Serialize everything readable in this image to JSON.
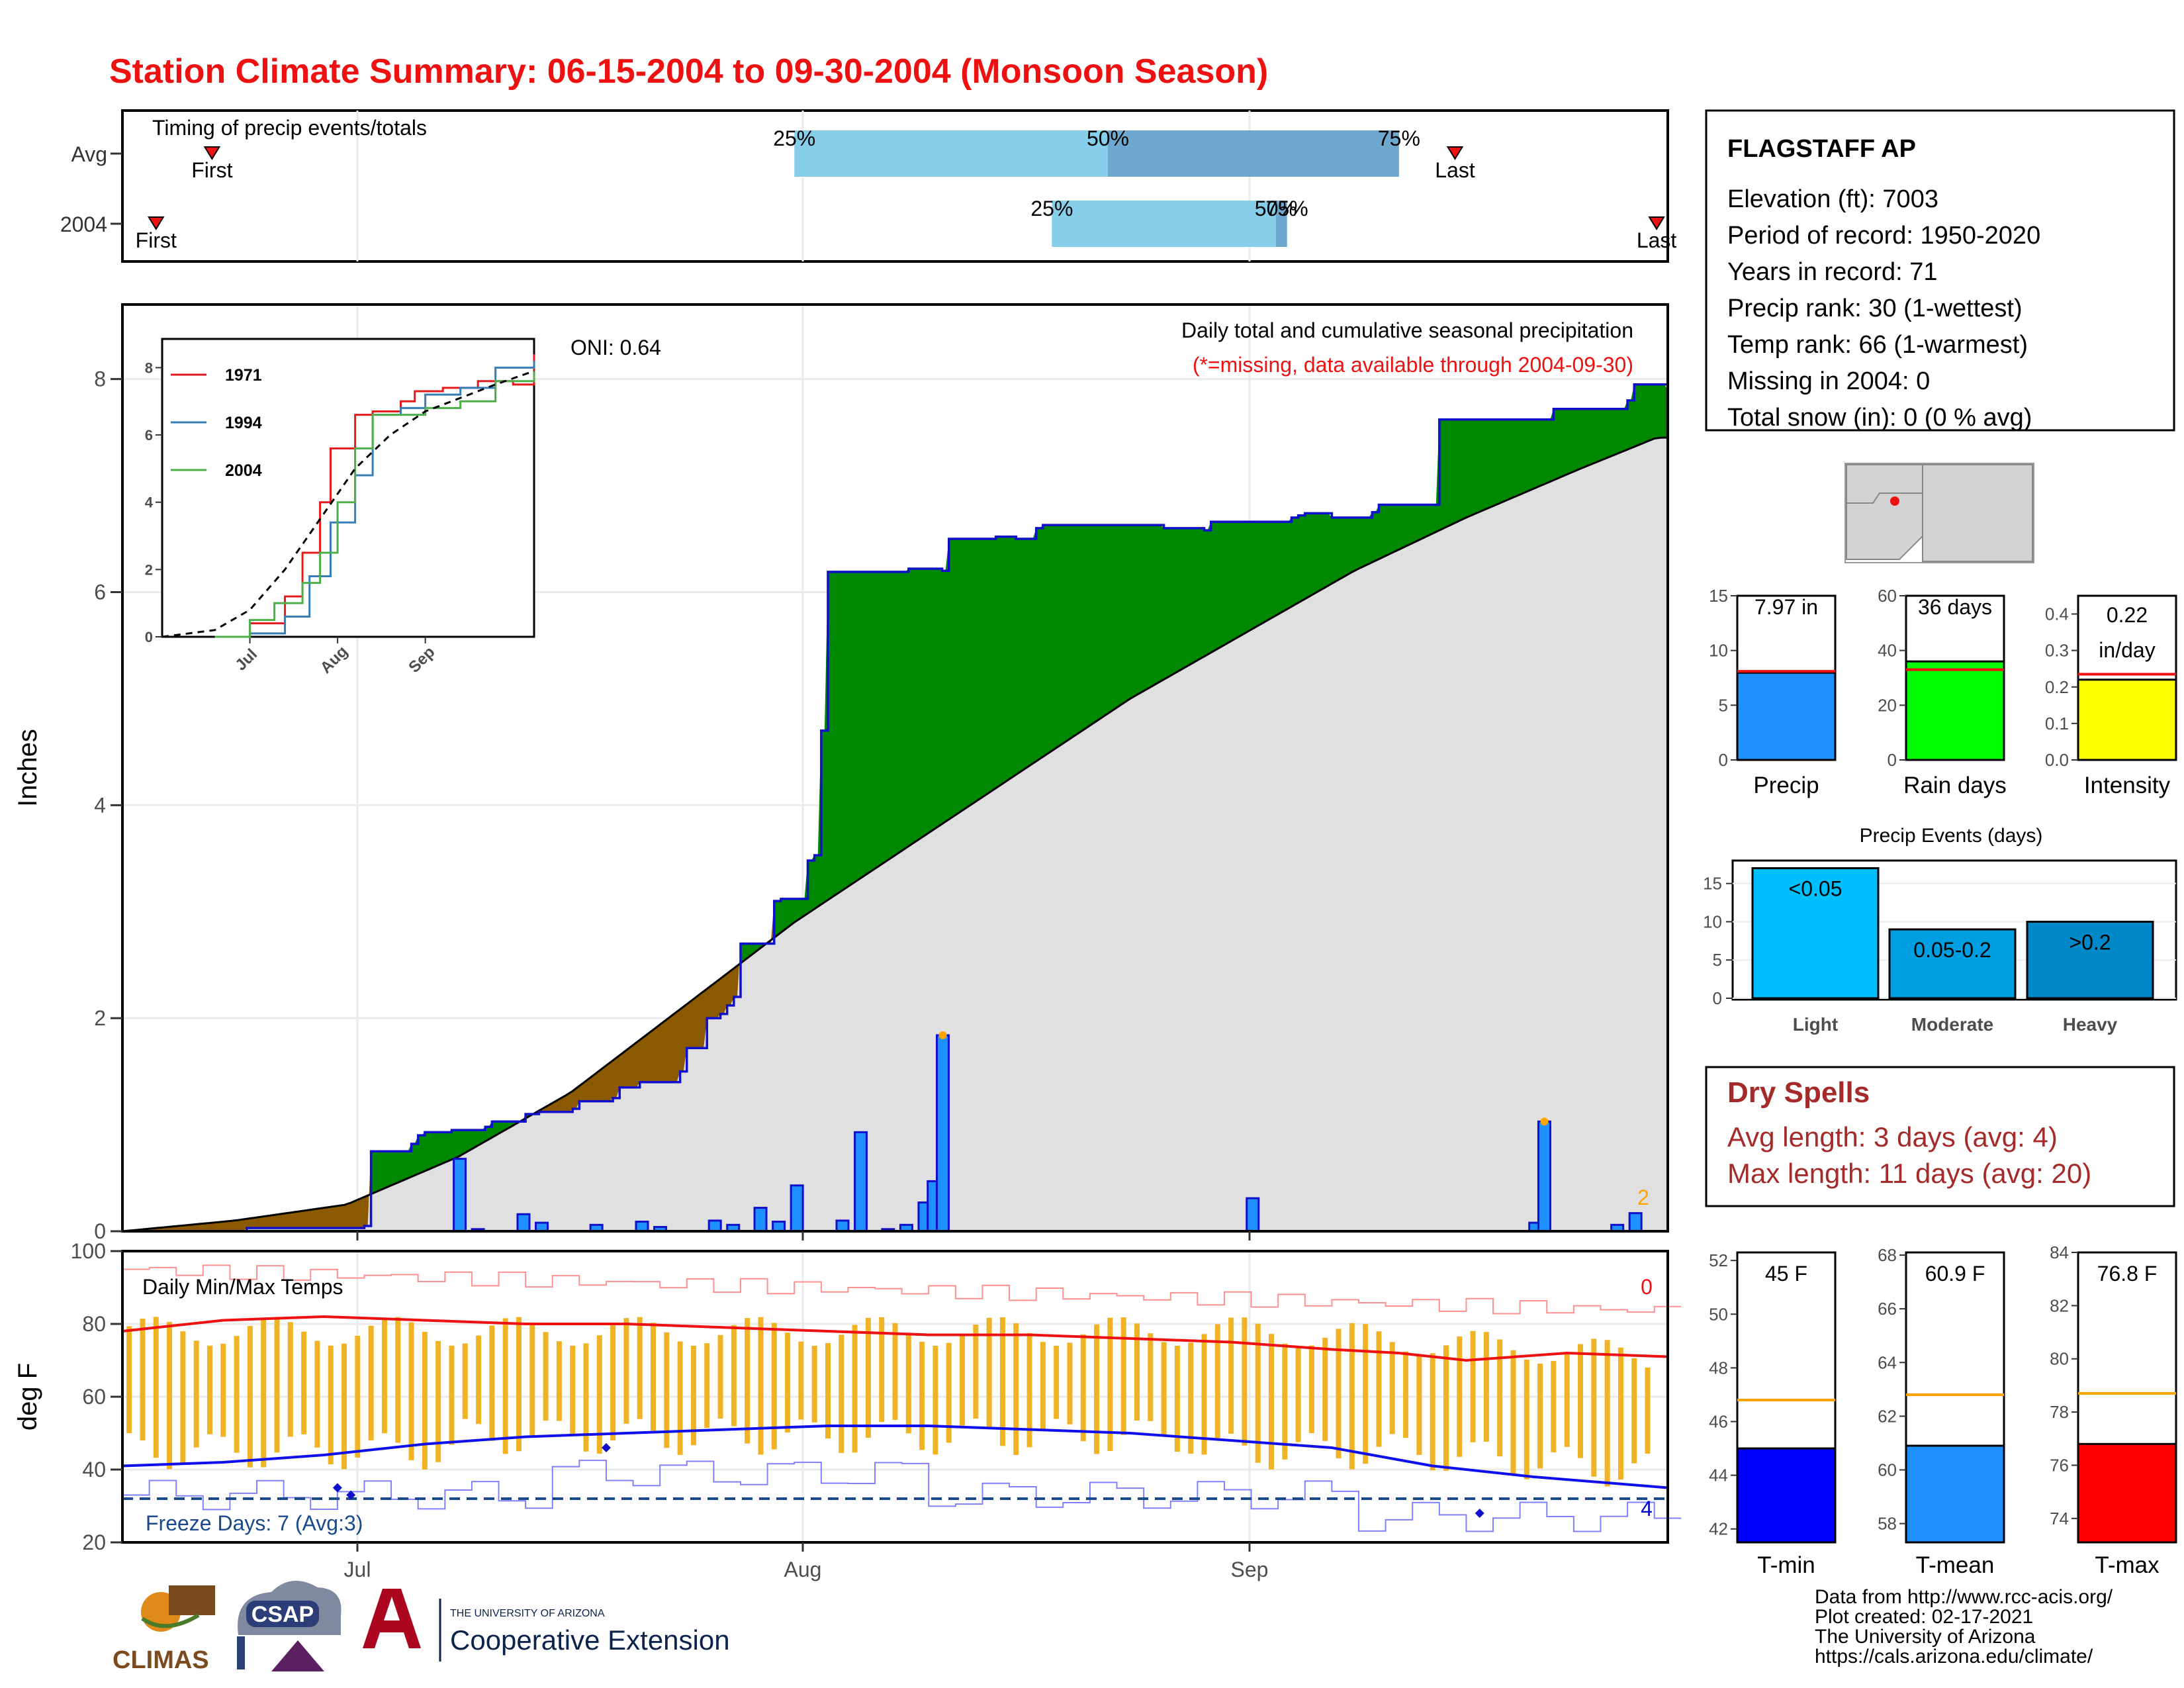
{
  "page": {
    "title": "Station Climate Summary: 06-15-2004 to 09-30-2004 (Monsoon Season)",
    "colors": {
      "title": "#ee1111",
      "avg_line": "#ee1111",
      "dry_spell_text": "#a52a2a"
    }
  },
  "timing_panel": {
    "title": "Timing of precip events/totals",
    "rows": [
      "Avg",
      "2004"
    ],
    "avg": {
      "first_day": 8,
      "last_day": 119,
      "pct25": 60,
      "pct50": 88,
      "pct75": 114,
      "first_label": "First",
      "last_label": "Last",
      "labels": [
        "25%",
        "50%",
        "75%"
      ]
    },
    "y2004": {
      "first_day": 3,
      "last_day": 137,
      "pct25": 83,
      "pct50": 103,
      "pct75": 104,
      "first_label": "First",
      "last_label": "Last",
      "labels": [
        "25%",
        "50%",
        "75%"
      ]
    }
  },
  "precip_panel": {
    "ylabel": "Inches",
    "oni": "ONI: 0.64",
    "title": "Daily total and cumulative seasonal precipitation",
    "note": "(*=missing, data available through 2004-09-30)",
    "count_label": "2",
    "ylim": [
      0,
      8.7
    ],
    "yticks": [
      0,
      2,
      4,
      6,
      8
    ],
    "x_ticks": [
      "Jul",
      "Aug",
      "Sep"
    ]
  },
  "chart_data": [
    {
      "type": "area",
      "name": "cumulative",
      "x_start": "2004-06-15",
      "x_end": "2004-09-30",
      "avg_cumulative": [
        [
          0,
          0
        ],
        [
          10,
          0.1
        ],
        [
          20,
          0.25
        ],
        [
          30,
          0.7
        ],
        [
          40,
          1.3
        ],
        [
          50,
          2.1
        ],
        [
          60,
          2.9
        ],
        [
          70,
          3.6
        ],
        [
          80,
          4.3
        ],
        [
          90,
          5.0
        ],
        [
          100,
          5.6
        ],
        [
          110,
          6.2
        ],
        [
          120,
          6.7
        ],
        [
          130,
          7.15
        ],
        [
          137,
          7.45
        ],
        [
          138,
          7.45
        ]
      ],
      "cumulative_2004": [
        [
          0,
          0
        ],
        [
          18,
          0.0
        ],
        [
          18.5,
          0.03
        ],
        [
          36,
          0.05
        ],
        [
          37,
          0.75
        ],
        [
          43,
          0.82
        ],
        [
          44,
          0.9
        ],
        [
          45,
          0.93
        ],
        [
          49,
          0.95
        ],
        [
          54,
          0.98
        ],
        [
          55,
          1.03
        ],
        [
          60,
          1.1
        ],
        [
          62,
          1.12
        ],
        [
          67,
          1.15
        ],
        [
          68,
          1.22
        ],
        [
          73,
          1.25
        ],
        [
          74,
          1.35
        ],
        [
          77,
          1.4
        ],
        [
          83,
          1.5
        ],
        [
          84,
          1.72
        ],
        [
          87,
          2.0
        ],
        [
          89,
          2.04
        ],
        [
          90,
          2.12
        ],
        [
          91,
          2.2
        ],
        [
          92,
          2.7
        ],
        [
          97,
          3.1
        ],
        [
          98,
          3.12
        ],
        [
          102,
          3.48
        ],
        [
          103,
          3.53
        ],
        [
          104,
          4.7
        ],
        [
          105,
          6.19
        ],
        [
          117,
          6.22
        ],
        [
          122,
          6.2
        ],
        [
          123,
          6.5
        ],
        [
          130,
          6.52
        ],
        [
          133,
          6.5
        ],
        [
          136,
          6.6
        ],
        [
          137,
          6.63
        ],
        [
          150,
          6.63
        ],
        [
          155,
          6.6
        ],
        [
          161,
          6.58
        ],
        [
          162,
          6.66
        ],
        [
          171,
          6.66
        ],
        [
          174,
          6.7
        ],
        [
          175,
          6.72
        ],
        [
          176,
          6.74
        ],
        [
          180,
          6.7
        ],
        [
          186,
          6.75
        ],
        [
          187,
          6.82
        ],
        [
          195,
          6.82
        ],
        [
          196,
          7.62
        ],
        [
          211,
          7.62
        ],
        [
          213,
          7.72
        ],
        [
          222,
          7.72
        ],
        [
          224,
          7.8
        ],
        [
          225,
          7.95
        ],
        [
          228,
          7.95
        ],
        [
          230,
          7.9
        ]
      ],
      "daily_precip": [
        [
          37,
          0.68
        ],
        [
          39,
          0.02
        ],
        [
          44,
          0.16
        ],
        [
          46,
          0.08
        ],
        [
          52,
          0.06
        ],
        [
          57,
          0.09
        ],
        [
          59,
          0.04
        ],
        [
          65,
          0.1
        ],
        [
          67,
          0.06
        ],
        [
          70,
          0.22
        ],
        [
          72,
          0.09
        ],
        [
          74,
          0.43
        ],
        [
          79,
          0.1
        ],
        [
          81,
          0.93
        ],
        [
          84,
          0.02
        ],
        [
          86,
          0.06
        ],
        [
          88,
          0.27
        ],
        [
          89,
          0.47
        ],
        [
          90,
          1.84
        ],
        [
          124,
          0.31
        ],
        [
          155,
          0.08
        ],
        [
          156,
          1.03
        ],
        [
          164,
          0.06
        ],
        [
          166,
          0.17
        ]
      ],
      "ylim": [
        0,
        8.7
      ],
      "ylabel": "Inches"
    },
    {
      "type": "line",
      "name": "inset-cumulative",
      "series": [
        {
          "name": "1971",
          "color": "#e41a1c",
          "points": [
            [
              15,
              0
            ],
            [
              25,
              0.4
            ],
            [
              35,
              1.2
            ],
            [
              40,
              2.5
            ],
            [
              45,
              4.0
            ],
            [
              48,
              5.6
            ],
            [
              55,
              6.6
            ],
            [
              60,
              6.7
            ],
            [
              68,
              7.0
            ],
            [
              72,
              7.3
            ],
            [
              80,
              7.4
            ],
            [
              90,
              7.6
            ],
            [
              100,
              7.5
            ],
            [
              106,
              8.4
            ]
          ]
        },
        {
          "name": "1994",
          "color": "#377eb8",
          "points": [
            [
              15,
              0
            ],
            [
              25,
              0.1
            ],
            [
              35,
              0.6
            ],
            [
              42,
              1.8
            ],
            [
              48,
              3.4
            ],
            [
              55,
              4.8
            ],
            [
              60,
              6.6
            ],
            [
              68,
              6.8
            ],
            [
              75,
              7.2
            ],
            [
              85,
              7.4
            ],
            [
              95,
              8.0
            ],
            [
              106,
              8.2
            ]
          ]
        },
        {
          "name": "2004",
          "color": "#4daf4a",
          "points": [
            [
              15,
              0
            ],
            [
              25,
              0.5
            ],
            [
              32,
              1.0
            ],
            [
              40,
              1.6
            ],
            [
              45,
              2.5
            ],
            [
              50,
              4.0
            ],
            [
              55,
              5.6
            ],
            [
              60,
              6.6
            ],
            [
              75,
              6.8
            ],
            [
              85,
              7.0
            ],
            [
              95,
              7.6
            ],
            [
              106,
              7.9
            ]
          ]
        },
        {
          "name": "avg",
          "color": "#000000",
          "dashed": true,
          "points": [
            [
              0,
              0
            ],
            [
              15,
              0.2
            ],
            [
              25,
              0.8
            ],
            [
              35,
              2.0
            ],
            [
              45,
              3.5
            ],
            [
              55,
              5.0
            ],
            [
              65,
              6.0
            ],
            [
              75,
              6.7
            ],
            [
              85,
              7.1
            ],
            [
              95,
              7.5
            ],
            [
              106,
              7.9
            ]
          ]
        }
      ],
      "yticks": [
        0,
        2,
        4,
        6,
        8
      ],
      "xticks": [
        "Jul",
        "Aug",
        "Sep"
      ],
      "ylim": [
        0,
        8.5
      ]
    },
    {
      "type": "bar",
      "name": "daily-temps",
      "title": "Daily Min/Max Temps",
      "ylabel": "deg F",
      "ylim": [
        20,
        100
      ],
      "yticks": [
        20,
        40,
        60,
        80,
        100
      ],
      "freeze_label": "Freeze Days: 7 (Avg:3)",
      "corner_count_top": "0",
      "corner_count_bottom": "4",
      "freeze_line": 32,
      "avg_max": [
        [
          0,
          78
        ],
        [
          15,
          81
        ],
        [
          30,
          82
        ],
        [
          45,
          81
        ],
        [
          60,
          80
        ],
        [
          75,
          80
        ],
        [
          90,
          79
        ],
        [
          105,
          78
        ],
        [
          120,
          77
        ],
        [
          135,
          77
        ],
        [
          150,
          76
        ],
        [
          165,
          75
        ],
        [
          180,
          73
        ],
        [
          190,
          72
        ],
        [
          200,
          70
        ],
        [
          215,
          72
        ],
        [
          230,
          71
        ]
      ],
      "avg_min": [
        [
          0,
          41
        ],
        [
          15,
          42
        ],
        [
          30,
          44
        ],
        [
          45,
          47
        ],
        [
          60,
          49
        ],
        [
          75,
          50
        ],
        [
          90,
          51
        ],
        [
          105,
          52
        ],
        [
          120,
          52
        ],
        [
          135,
          51
        ],
        [
          150,
          50
        ],
        [
          165,
          48
        ],
        [
          180,
          46
        ],
        [
          195,
          41
        ],
        [
          210,
          38
        ],
        [
          230,
          35
        ]
      ]
    },
    {
      "type": "bar",
      "name": "totals",
      "categories": [
        "Precip",
        "Rain days",
        "Intensity"
      ],
      "values": [
        7.97,
        36,
        0.22
      ],
      "averages": [
        8.1,
        33,
        0.235
      ],
      "labels": [
        "7.97 in",
        "36 days",
        "0.22 in/day"
      ],
      "ylims": [
        [
          0,
          15
        ],
        [
          0,
          60
        ],
        [
          0,
          0.45
        ]
      ],
      "yticks": [
        [
          0,
          5,
          10,
          15
        ],
        [
          0,
          20,
          40,
          60
        ],
        [
          0.0,
          0.1,
          0.2,
          0.3,
          0.4
        ]
      ],
      "colors": [
        "#1e90ff",
        "#00ff00",
        "#ffff00"
      ]
    },
    {
      "type": "bar",
      "name": "precip-events",
      "title": "Precip Events (days)",
      "categories": [
        "Light",
        "Moderate",
        "Heavy"
      ],
      "values": [
        17,
        9,
        10
      ],
      "labels": [
        "<0.05",
        "0.05-0.2",
        ">0.2"
      ],
      "ylim": [
        0,
        18
      ],
      "yticks": [
        0,
        5,
        10,
        15
      ],
      "colors": [
        "#00bfff",
        "#009ee0",
        "#0088c8"
      ]
    },
    {
      "type": "bar",
      "name": "temp-summary",
      "categories": [
        "T-min",
        "T-mean",
        "T-max"
      ],
      "values": [
        45,
        60.9,
        76.8
      ],
      "labels": [
        "45 F",
        "60.9 F",
        "76.8 F"
      ],
      "averages": [
        46.8,
        62.8,
        78.7
      ],
      "ylims": [
        [
          41.5,
          52.3
        ],
        [
          57.3,
          68.1
        ],
        [
          73.1,
          84
        ]
      ],
      "yticks": [
        [
          42,
          44,
          46,
          48,
          50,
          52
        ],
        [
          58,
          60,
          62,
          64,
          66,
          68
        ],
        [
          74,
          76,
          78,
          80,
          82,
          84
        ]
      ],
      "colors": [
        "#0000ff",
        "#1e90ff",
        "#ff0000"
      ]
    }
  ],
  "station": {
    "name": "FLAGSTAFF AP",
    "lines": [
      "Elevation (ft): 7003",
      "Period of record: 1950-2020",
      "Years in record: 71",
      "Precip rank: 30 (1-wettest)",
      "Temp rank: 66 (1-warmest)",
      "Missing in 2004: 0",
      "Total snow (in): 0 (0 % avg)"
    ]
  },
  "dry_spells": {
    "title": "Dry Spells",
    "avg_length": "Avg length: 3 days (avg: 4)",
    "max_length": "Max length: 11 days (avg: 20)"
  },
  "footer": {
    "credits": [
      "Data from http://www.rcc-acis.org/",
      "Plot created: 02-17-2021",
      "The University of Arizona",
      "https://cals.arizona.edu/climate/"
    ],
    "logos": [
      "CLIMAS",
      "CSAP",
      "THE UNIVERSITY OF ARIZONA",
      "Cooperative Extension"
    ]
  }
}
